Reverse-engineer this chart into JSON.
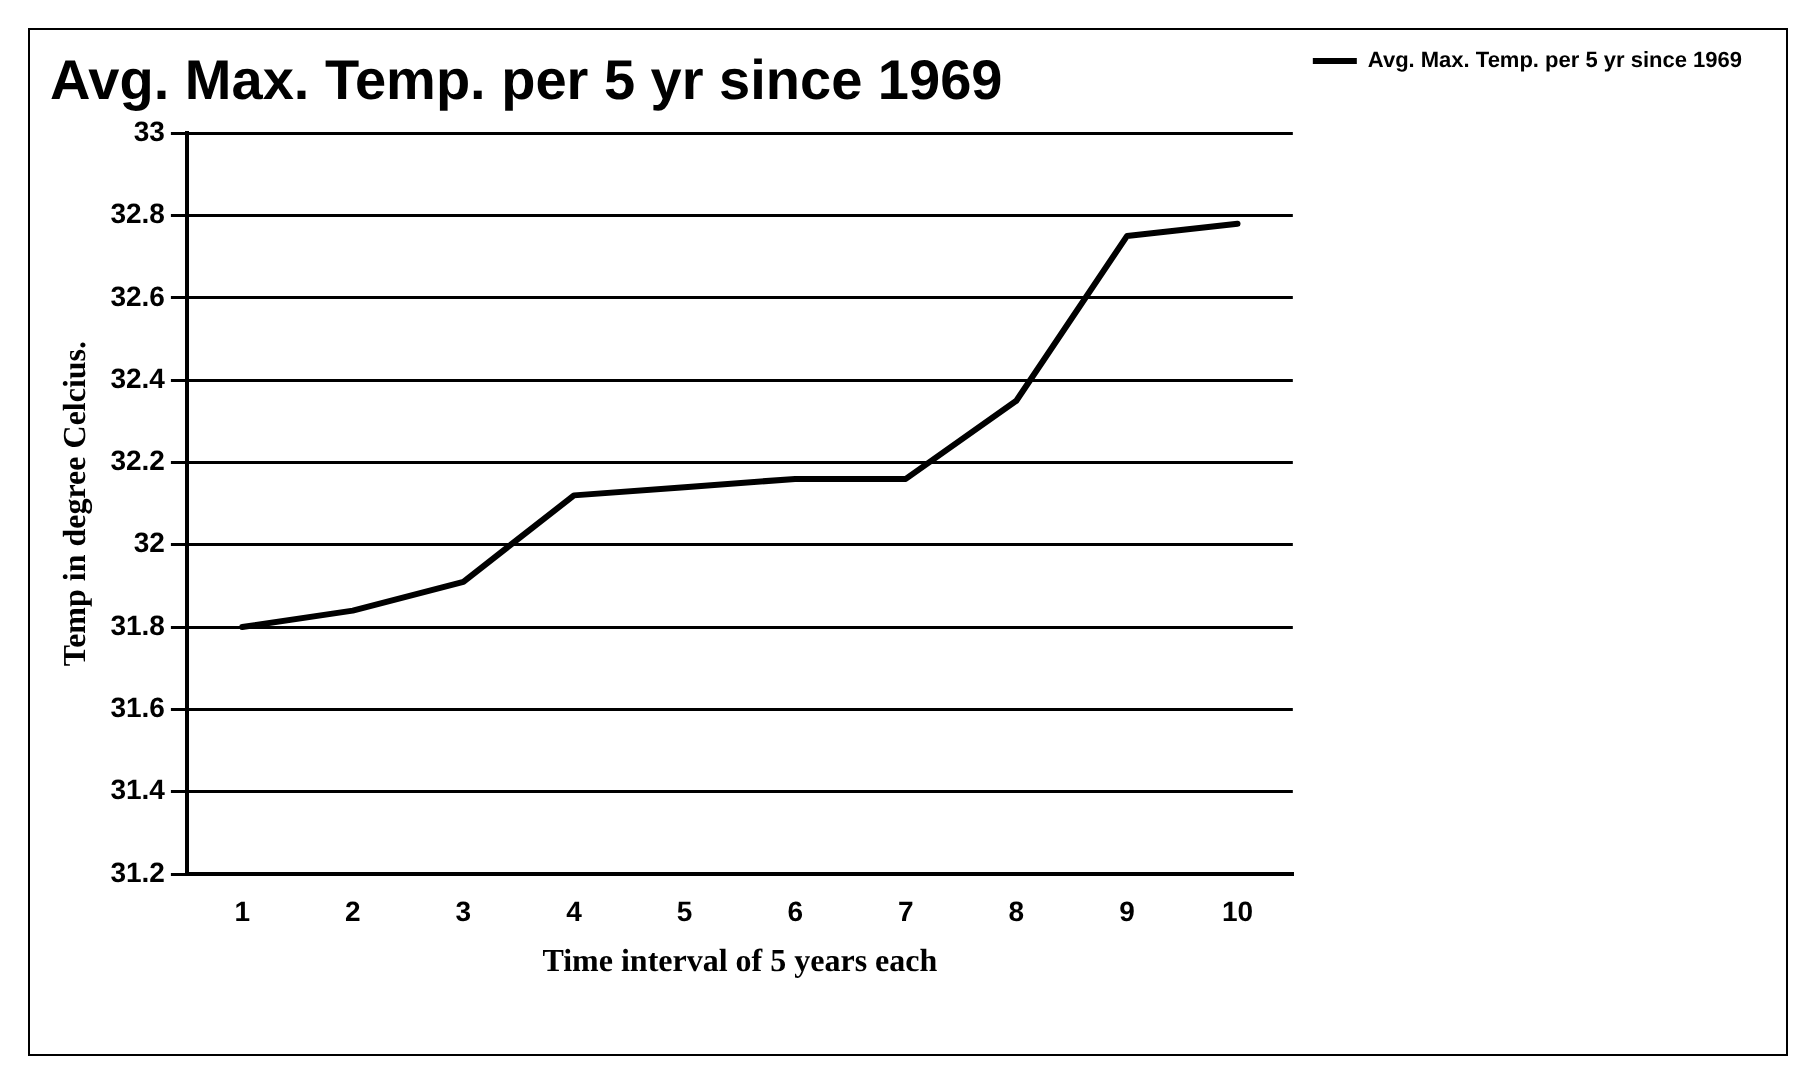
{
  "chart_data": {
    "type": "line",
    "title": "Avg. Max. Temp. per 5 yr since 1969",
    "xlabel": "Time interval of 5 years each",
    "ylabel": "Temp in degree Celcius.",
    "categories": [
      "1",
      "2",
      "3",
      "4",
      "5",
      "6",
      "7",
      "8",
      "9",
      "10"
    ],
    "series": [
      {
        "name": "Avg. Max. Temp. per 5 yr since 1969",
        "color": "#000000",
        "values": [
          31.8,
          31.84,
          31.91,
          32.12,
          32.14,
          32.16,
          32.16,
          32.35,
          32.75,
          32.78
        ]
      }
    ],
    "ylim": [
      31.2,
      33
    ],
    "yticks": [
      31.2,
      31.4,
      31.6,
      31.8,
      32,
      32.2,
      32.4,
      32.6,
      32.8,
      33
    ],
    "grid": "y",
    "legend": "right",
    "marker": "none",
    "line_style": "solid"
  }
}
